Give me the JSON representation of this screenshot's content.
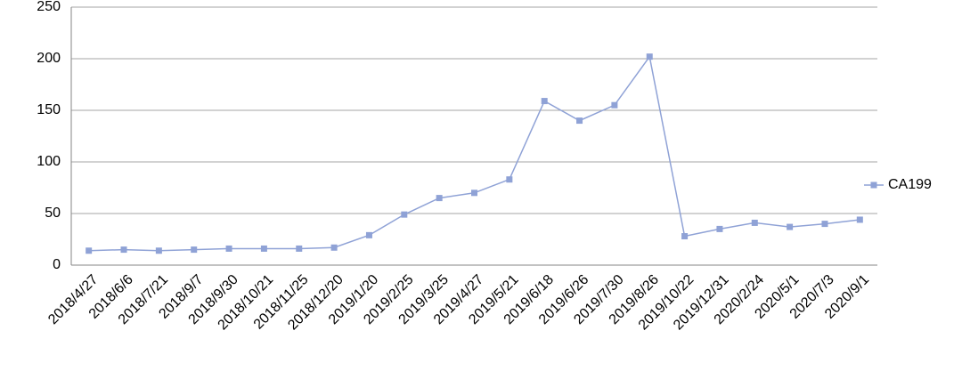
{
  "chart_data": {
    "type": "line",
    "categories": [
      "2018/4/27",
      "2018/6/6",
      "2018/7/21",
      "2018/9/7",
      "2018/9/30",
      "2018/10/21",
      "2018/11/25",
      "2018/12/20",
      "2019/1/20",
      "2019/2/25",
      "2019/3/25",
      "2019/4/27",
      "2019/5/21",
      "2019/6/18",
      "2019/6/26",
      "2019/7/30",
      "2019/8/26",
      "2019/10/22",
      "2019/12/31",
      "2020/2/24",
      "2020/5/1",
      "2020/7/3",
      "2020/9/1"
    ],
    "series": [
      {
        "name": "CA199",
        "color": "#8fa2d6",
        "values": [
          14,
          15,
          14,
          15,
          16,
          16,
          16,
          17,
          29,
          49,
          65,
          70,
          83,
          159,
          140,
          155,
          202,
          28,
          35,
          41,
          37,
          40,
          44
        ]
      }
    ],
    "ylim": [
      0,
      250
    ],
    "yticks": [
      0,
      50,
      100,
      150,
      200,
      250
    ],
    "grid": true,
    "legend": "right"
  }
}
